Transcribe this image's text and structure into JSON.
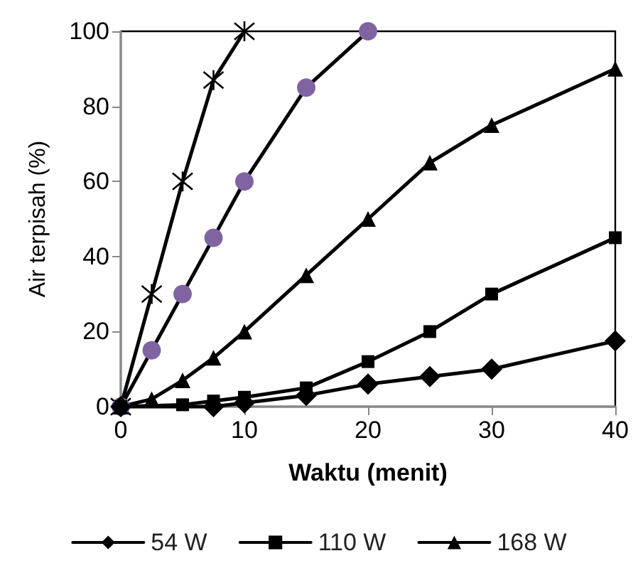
{
  "chart_data": {
    "type": "line",
    "xlabel": "Waktu (menit)",
    "ylabel": "Air terpisah (%)",
    "xlim": [
      0,
      40
    ],
    "xticks": [
      0,
      10,
      20,
      30,
      40
    ],
    "ylim": [
      0,
      100
    ],
    "yticks": [
      0,
      20,
      40,
      60,
      80,
      100
    ],
    "grid": false,
    "legend": "bottom",
    "series": [
      {
        "color": "#000000",
        "marker": "cross",
        "x": [
          0,
          2.5,
          5,
          7.5,
          10
        ],
        "values": [
          0,
          30,
          60,
          87,
          100
        ]
      },
      {
        "color": "#8064a2",
        "marker": "circle",
        "x": [
          0,
          2.5,
          5,
          7.5,
          10,
          15,
          20
        ],
        "values": [
          0,
          15,
          30,
          45,
          60,
          85,
          100
        ]
      },
      {
        "name": "54 W",
        "color": "#000000",
        "marker": "diamond",
        "x": [
          0,
          7.5,
          10,
          15,
          20,
          25,
          30,
          40
        ],
        "values": [
          0,
          0,
          1,
          3,
          6,
          8,
          10,
          17.5
        ]
      },
      {
        "name": "110 W",
        "color": "#000000",
        "marker": "square",
        "x": [
          0,
          5,
          7.5,
          10,
          15,
          20,
          25,
          30,
          40
        ],
        "values": [
          0,
          0.5,
          1.5,
          2.5,
          5,
          12,
          20,
          30,
          45
        ]
      },
      {
        "name": "168 W",
        "color": "#000000",
        "marker": "triangle",
        "x": [
          0,
          2.5,
          5,
          7.5,
          10,
          15,
          20,
          25,
          30,
          40
        ],
        "values": [
          0,
          2,
          7,
          13,
          20,
          35,
          50,
          65,
          75,
          90
        ]
      }
    ]
  }
}
